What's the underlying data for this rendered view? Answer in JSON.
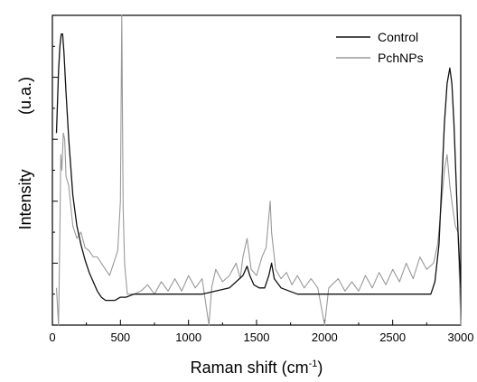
{
  "chart_data": {
    "type": "line",
    "title": "",
    "xlabel": "Raman shift (cm",
    "xlabel_superscript": "-1",
    "xlabel_close": ")",
    "ylabel": "Intensity",
    "ylabel_unit": "(u.a.)",
    "xlim": [
      0,
      3000
    ],
    "ylim": [
      0,
      100
    ],
    "x_ticks": [
      "0",
      "500",
      "1000",
      "1500",
      "2000",
      "2500",
      "3000"
    ],
    "grid": false,
    "legend_position": "top-right",
    "series": [
      {
        "name": "Control",
        "color": "#111111",
        "points": [
          [
            30,
            62
          ],
          [
            45,
            82
          ],
          [
            55,
            90
          ],
          [
            65,
            94
          ],
          [
            75,
            94
          ],
          [
            85,
            88
          ],
          [
            100,
            75
          ],
          [
            120,
            60
          ],
          [
            150,
            42
          ],
          [
            180,
            32
          ],
          [
            210,
            26
          ],
          [
            240,
            21
          ],
          [
            270,
            17
          ],
          [
            300,
            14
          ],
          [
            330,
            11
          ],
          [
            360,
            9
          ],
          [
            390,
            8
          ],
          [
            420,
            8
          ],
          [
            460,
            8
          ],
          [
            500,
            9
          ],
          [
            540,
            9
          ],
          [
            600,
            10
          ],
          [
            700,
            10
          ],
          [
            800,
            10
          ],
          [
            900,
            10
          ],
          [
            1000,
            10
          ],
          [
            1100,
            10
          ],
          [
            1200,
            11
          ],
          [
            1300,
            12
          ],
          [
            1350,
            14
          ],
          [
            1400,
            16
          ],
          [
            1430,
            19
          ],
          [
            1450,
            16
          ],
          [
            1480,
            13
          ],
          [
            1520,
            12
          ],
          [
            1560,
            12
          ],
          [
            1590,
            16
          ],
          [
            1610,
            20
          ],
          [
            1630,
            15
          ],
          [
            1680,
            12
          ],
          [
            1800,
            10
          ],
          [
            1900,
            10
          ],
          [
            2000,
            10
          ],
          [
            2100,
            10
          ],
          [
            2200,
            10
          ],
          [
            2300,
            10
          ],
          [
            2400,
            10
          ],
          [
            2500,
            10
          ],
          [
            2600,
            10
          ],
          [
            2700,
            10
          ],
          [
            2780,
            10
          ],
          [
            2810,
            14
          ],
          [
            2840,
            26
          ],
          [
            2860,
            45
          ],
          [
            2880,
            65
          ],
          [
            2900,
            78
          ],
          [
            2920,
            83
          ],
          [
            2935,
            78
          ],
          [
            2950,
            65
          ],
          [
            2965,
            48
          ],
          [
            2980,
            30
          ],
          [
            3000,
            12
          ]
        ]
      },
      {
        "name": "PchNPs",
        "color": "#999999",
        "points": [
          [
            30,
            12
          ],
          [
            45,
            0
          ],
          [
            55,
            30
          ],
          [
            62,
            55
          ],
          [
            70,
            50
          ],
          [
            80,
            62
          ],
          [
            90,
            60
          ],
          [
            100,
            48
          ],
          [
            120,
            45
          ],
          [
            150,
            32
          ],
          [
            180,
            28
          ],
          [
            210,
            30
          ],
          [
            240,
            25
          ],
          [
            270,
            24
          ],
          [
            300,
            22
          ],
          [
            330,
            22
          ],
          [
            360,
            20
          ],
          [
            390,
            18
          ],
          [
            420,
            16
          ],
          [
            450,
            20
          ],
          [
            480,
            24
          ],
          [
            500,
            40
          ],
          [
            510,
            100
          ],
          [
            520,
            38
          ],
          [
            530,
            20
          ],
          [
            550,
            10
          ],
          [
            600,
            10
          ],
          [
            650,
            11
          ],
          [
            700,
            13
          ],
          [
            750,
            10
          ],
          [
            800,
            14
          ],
          [
            850,
            11
          ],
          [
            900,
            15
          ],
          [
            950,
            11
          ],
          [
            1000,
            16
          ],
          [
            1050,
            12
          ],
          [
            1100,
            15
          ],
          [
            1150,
            0
          ],
          [
            1170,
            12
          ],
          [
            1200,
            18
          ],
          [
            1250,
            14
          ],
          [
            1300,
            16
          ],
          [
            1350,
            20
          ],
          [
            1380,
            15
          ],
          [
            1400,
            22
          ],
          [
            1430,
            28
          ],
          [
            1460,
            18
          ],
          [
            1500,
            16
          ],
          [
            1540,
            22
          ],
          [
            1570,
            25
          ],
          [
            1600,
            40
          ],
          [
            1610,
            30
          ],
          [
            1640,
            18
          ],
          [
            1680,
            15
          ],
          [
            1720,
            17
          ],
          [
            1760,
            13
          ],
          [
            1800,
            16
          ],
          [
            1850,
            12
          ],
          [
            1900,
            15
          ],
          [
            1950,
            12
          ],
          [
            2000,
            0
          ],
          [
            2030,
            12
          ],
          [
            2100,
            15
          ],
          [
            2150,
            11
          ],
          [
            2200,
            14
          ],
          [
            2250,
            11
          ],
          [
            2300,
            16
          ],
          [
            2350,
            12
          ],
          [
            2400,
            17
          ],
          [
            2450,
            13
          ],
          [
            2500,
            18
          ],
          [
            2550,
            14
          ],
          [
            2600,
            20
          ],
          [
            2650,
            15
          ],
          [
            2700,
            22
          ],
          [
            2750,
            18
          ],
          [
            2800,
            20
          ],
          [
            2830,
            26
          ],
          [
            2860,
            40
          ],
          [
            2880,
            50
          ],
          [
            2900,
            55
          ],
          [
            2920,
            45
          ],
          [
            2940,
            38
          ],
          [
            2960,
            32
          ],
          [
            2980,
            30
          ],
          [
            3000,
            0
          ]
        ]
      }
    ]
  }
}
